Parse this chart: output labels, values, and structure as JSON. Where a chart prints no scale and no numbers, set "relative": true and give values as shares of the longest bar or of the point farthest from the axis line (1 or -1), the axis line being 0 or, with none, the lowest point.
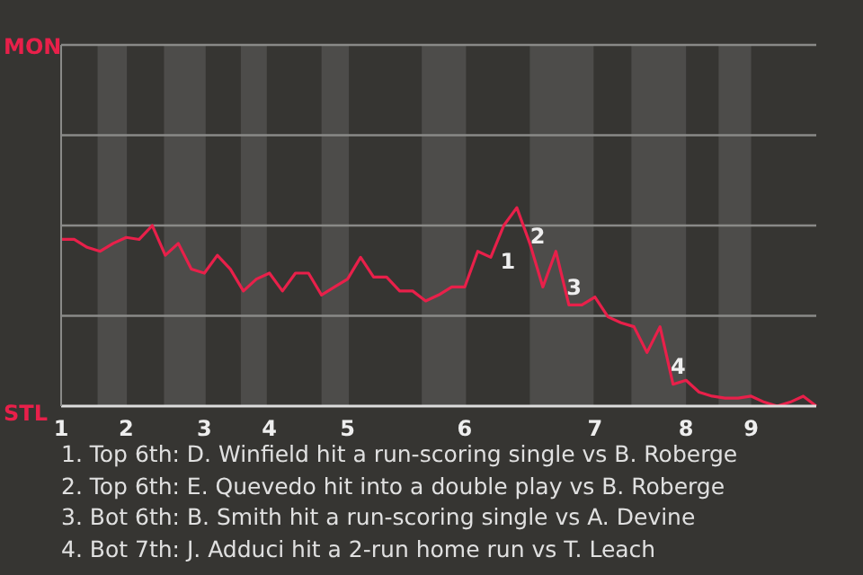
{
  "chart_data": {
    "type": "line",
    "categories": [
      "1",
      null,
      null,
      null,
      null,
      "2",
      null,
      null,
      null,
      null,
      null,
      "3",
      null,
      null,
      null,
      null,
      "4",
      null,
      null,
      null,
      null,
      null,
      "5",
      null,
      null,
      null,
      null,
      null,
      null,
      null,
      null,
      "6",
      null,
      null,
      null,
      null,
      null,
      null,
      null,
      null,
      null,
      "7",
      null,
      null,
      null,
      null,
      null,
      null,
      "8",
      null,
      null,
      null,
      null,
      "9",
      null,
      null,
      null,
      null,
      null
    ],
    "series": [
      {
        "color": "#e8204a",
        "values": [
          0.84,
          0.84,
          0.8,
          0.78,
          0.82,
          0.85,
          0.84,
          0.91,
          0.76,
          0.82,
          0.69,
          0.67,
          0.76,
          0.69,
          0.58,
          0.64,
          0.67,
          0.58,
          0.67,
          0.67,
          0.56,
          0.6,
          0.64,
          0.75,
          0.65,
          0.65,
          0.58,
          0.58,
          0.53,
          0.56,
          0.6,
          0.6,
          0.78,
          0.75,
          0.91,
          1,
          0.82,
          0.6,
          0.78,
          0.51,
          0.51,
          0.55,
          0.45,
          0.42,
          0.4,
          0.27,
          0.4,
          0.11,
          0.13,
          0.07,
          0.05,
          0.04,
          0.04,
          0.05,
          0.02,
          0,
          0.02,
          0.05,
          0
        ]
      }
    ],
    "relative": true,
    "marker": "none",
    "line_style": "solid",
    "ref_lines": [
      {
        "axis": "y",
        "value": 0.455,
        "color": "#8a8a88"
      },
      {
        "axis": "y",
        "value": 0.91,
        "color": "#8a8a88"
      },
      {
        "axis": "y",
        "value": 1.365,
        "color": "#8a8a88"
      },
      {
        "axis": "y",
        "value": 1.82,
        "color": "#8a8a88"
      }
    ],
    "annotations": [
      "MON",
      "STL",
      "1",
      "2",
      "3",
      "4",
      "1. Top 6th: D. Winfield hit a run-scoring single vs B. Roberge",
      "2. Top 6th: E. Quevedo hit into a double play vs B. Roberge",
      "3. Bot 6th: B. Smith hit a run-scoring single vs A. Devine",
      "4. Bot 7th: J. Adduci hit a 2-run home run vs T. Leach"
    ]
  }
}
